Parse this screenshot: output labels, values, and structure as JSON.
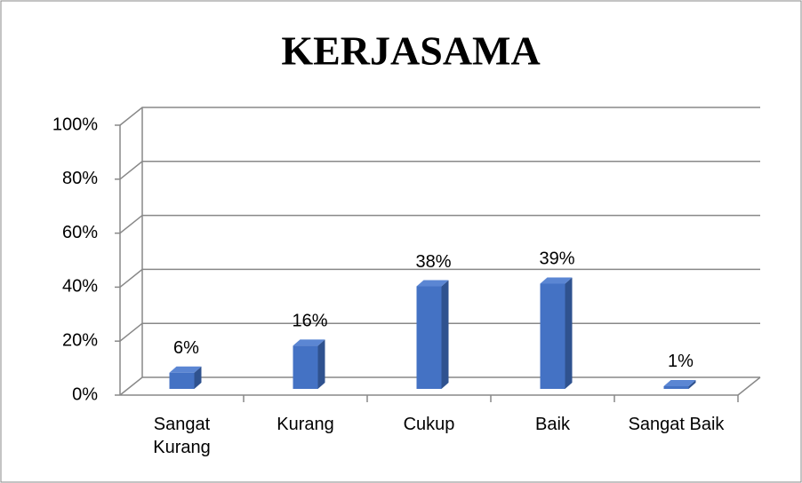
{
  "chart_data": {
    "type": "bar3d",
    "title": "KERJASAMA",
    "categories": [
      "Sangat Kurang",
      "Kurang",
      "Cukup",
      "Baik",
      "Sangat Baik"
    ],
    "values": [
      6,
      16,
      38,
      39,
      1
    ],
    "value_labels": [
      "6%",
      "16%",
      "38%",
      "39%",
      "1%"
    ],
    "color": "#4472c4",
    "ylim": [
      0,
      100
    ],
    "yticks": [
      {
        "value": 0,
        "label": "0%"
      },
      {
        "value": 20,
        "label": "20%"
      },
      {
        "value": 40,
        "label": "40%"
      },
      {
        "value": 60,
        "label": "60%"
      },
      {
        "value": 80,
        "label": "80%"
      },
      {
        "value": 100,
        "label": "100%"
      }
    ],
    "grid": true
  }
}
